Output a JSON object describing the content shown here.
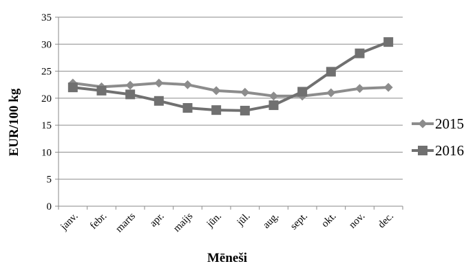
{
  "chart_data": {
    "type": "line",
    "title": "",
    "xlabel": "Mēneši",
    "ylabel": "EUR/100 kg",
    "categories": [
      "janv.",
      "febr.",
      "marts",
      "apr.",
      "maijs",
      "jūn.",
      "jūl.",
      "aug.",
      "sept.",
      "okt.",
      "nov.",
      "dec."
    ],
    "series": [
      {
        "name": "2015",
        "marker": "diamond",
        "color": "#8c8c8c",
        "values": [
          22.8,
          22.1,
          22.4,
          22.8,
          22.5,
          21.4,
          21.1,
          20.4,
          20.4,
          21.0,
          21.8,
          22.0
        ]
      },
      {
        "name": "2016",
        "marker": "square",
        "color": "#707070",
        "values": [
          22.0,
          21.4,
          20.7,
          19.5,
          18.2,
          17.8,
          17.7,
          18.7,
          21.2,
          24.9,
          28.3,
          30.4
        ]
      }
    ],
    "ylim": [
      0,
      35
    ],
    "yticks": [
      0,
      5,
      10,
      15,
      20,
      25,
      30,
      35
    ],
    "grid": true,
    "legend_position": "right"
  }
}
